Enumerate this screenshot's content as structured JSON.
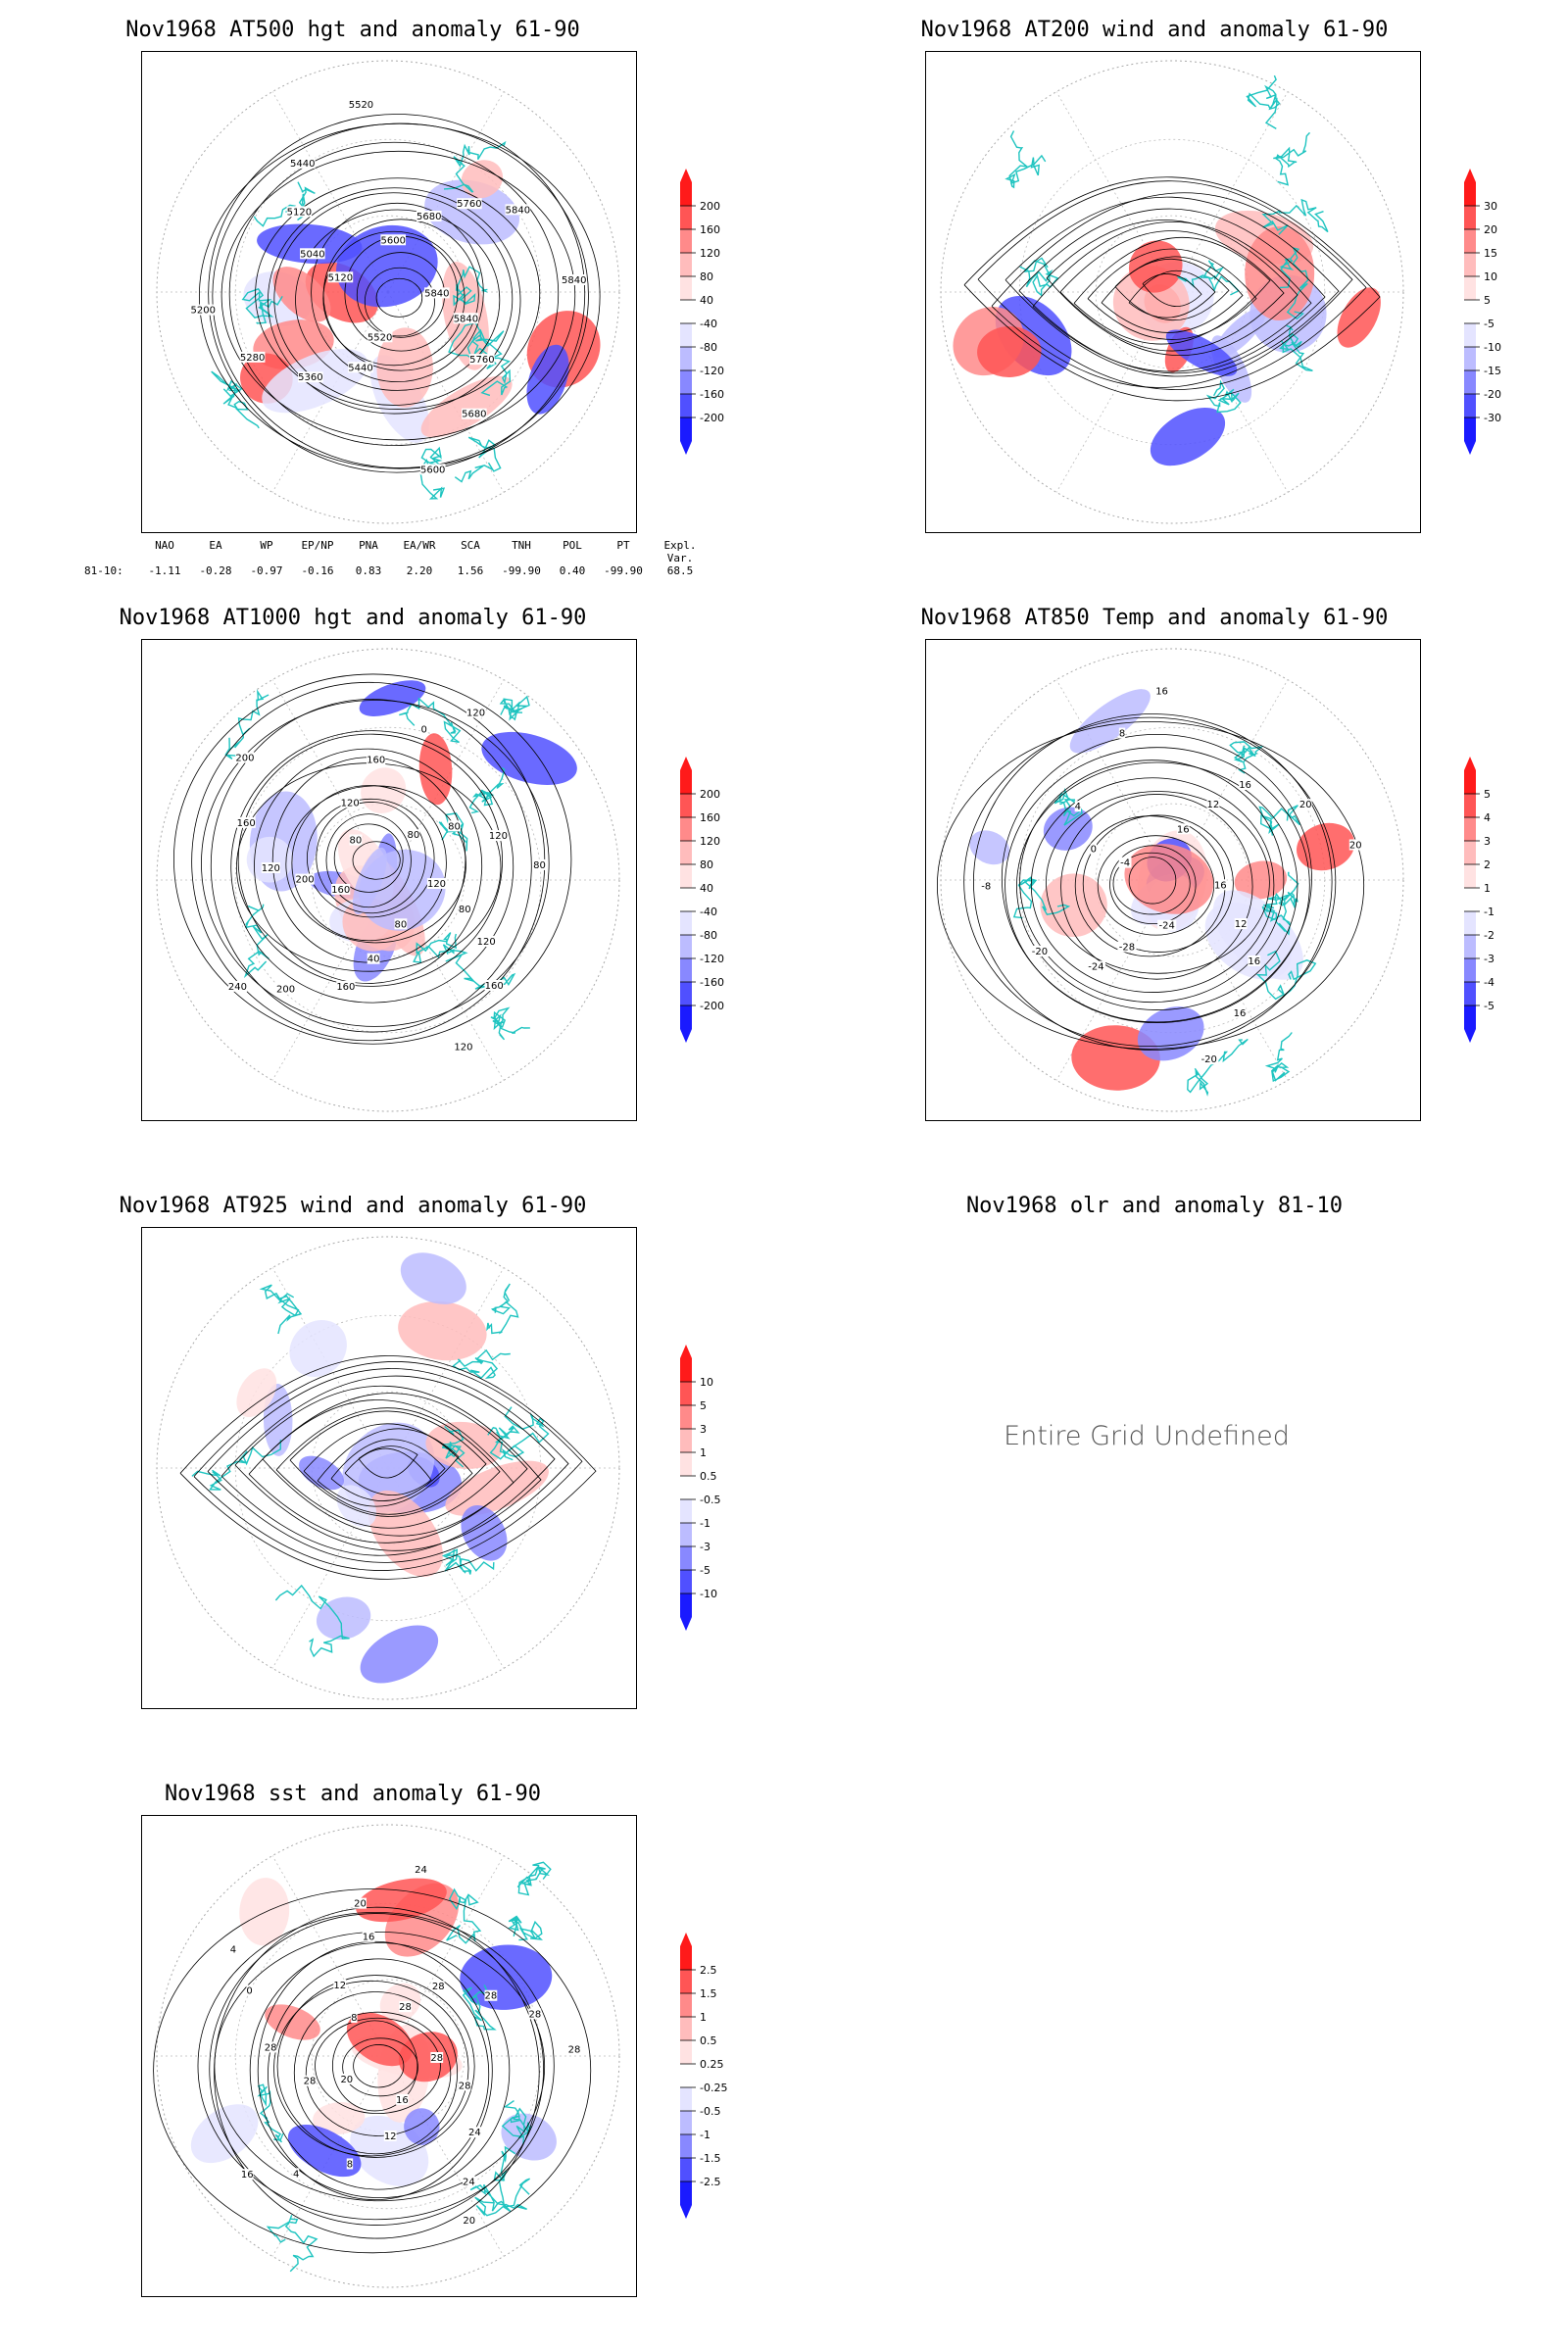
{
  "panels": {
    "p1": {
      "title": "Nov1968 AT500 hgt and anomaly 61-90",
      "legend": [
        "200",
        "160",
        "120",
        "80",
        "40",
        "-40",
        "-80",
        "-120",
        "-160",
        "-200"
      ],
      "contour_labels": [
        "5840",
        "5840",
        "5760",
        "5680",
        "5600",
        "5520",
        "5440",
        "5360",
        "5280",
        "5200",
        "5120",
        "5040",
        "5120",
        "5440",
        "5520",
        "5600",
        "5680",
        "5760",
        "5840",
        "5840"
      ]
    },
    "p2": {
      "title": "Nov1968 AT200 wind and anomaly 61-90",
      "legend": [
        "30",
        "20",
        "15",
        "10",
        "5",
        "-5",
        "-10",
        "-15",
        "-20",
        "-30"
      ]
    },
    "p3": {
      "title": "Nov1968 AT1000 hgt and anomaly 61-90",
      "legend": [
        "200",
        "160",
        "120",
        "80",
        "40",
        "-40",
        "-80",
        "-120",
        "-160",
        "-200"
      ],
      "contour_labels": [
        "120",
        "80",
        "120",
        "160",
        "120",
        "80",
        "40",
        "160",
        "200",
        "240",
        "160",
        "200",
        "120",
        "160",
        "200",
        "80",
        "120",
        "160",
        "0",
        "120",
        "80",
        "80",
        "120",
        "80"
      ]
    },
    "p4": {
      "title": "Nov1968 AT850 Temp and anomaly 61-90",
      "legend": [
        "5",
        "4",
        "3",
        "2",
        "1",
        "-1",
        "-2",
        "-3",
        "-4",
        "-5"
      ],
      "contour_labels": [
        "16",
        "12",
        "16",
        "16",
        "-20",
        "-24",
        "-28",
        "-24",
        "-20",
        "-8",
        "-4",
        "0",
        "4",
        "8",
        "16",
        "16",
        "12",
        "16",
        "20",
        "20"
      ]
    },
    "p5": {
      "title": "Nov1968 AT925 wind and anomaly 61-90",
      "legend": [
        "10",
        "5",
        "3",
        "1",
        "0.5",
        "-0.5",
        "-1",
        "-3",
        "-5",
        "-10"
      ]
    },
    "p6": {
      "title": "Nov1968 olr and anomaly 81-10",
      "message": "Entire Grid Undefined"
    },
    "p7": {
      "title": "Nov1968 sst and anomaly 61-90",
      "legend": [
        "2.5",
        "1.5",
        "1",
        "0.5",
        "0.25",
        "-0.25",
        "-0.5",
        "-1",
        "-1.5",
        "-2.5"
      ],
      "contour_labels": [
        "28",
        "28",
        "24",
        "24",
        "20",
        "16",
        "12",
        "8",
        "4",
        "16",
        "20",
        "28",
        "28",
        "0",
        "4",
        "8",
        "12",
        "16",
        "20",
        "24",
        "28",
        "28",
        "28",
        "28",
        "28"
      ]
    }
  },
  "index_table": {
    "headers": [
      "NAO",
      "EA",
      "WP",
      "EP/NP",
      "PNA",
      "EA/WR",
      "SCA",
      "TNH",
      "POL",
      "PT",
      "Expl. Var."
    ],
    "row_label": "81-10:",
    "values": [
      "-1.11",
      "-0.28",
      "-0.97",
      "-0.16",
      "0.83",
      "2.20",
      "1.56",
      "-99.90",
      "0.40",
      "-99.90",
      "68.5"
    ]
  },
  "colors": {
    "coastline": "#1fc4c0",
    "contour": "#000000",
    "positive": [
      "#ff1a1a",
      "#ff5555",
      "#ff8a8a",
      "#ffbcbc",
      "#ffe2e2"
    ],
    "negative": [
      "#e4e4ff",
      "#bcbcff",
      "#8888ff",
      "#5050ff",
      "#1a1aff"
    ]
  }
}
